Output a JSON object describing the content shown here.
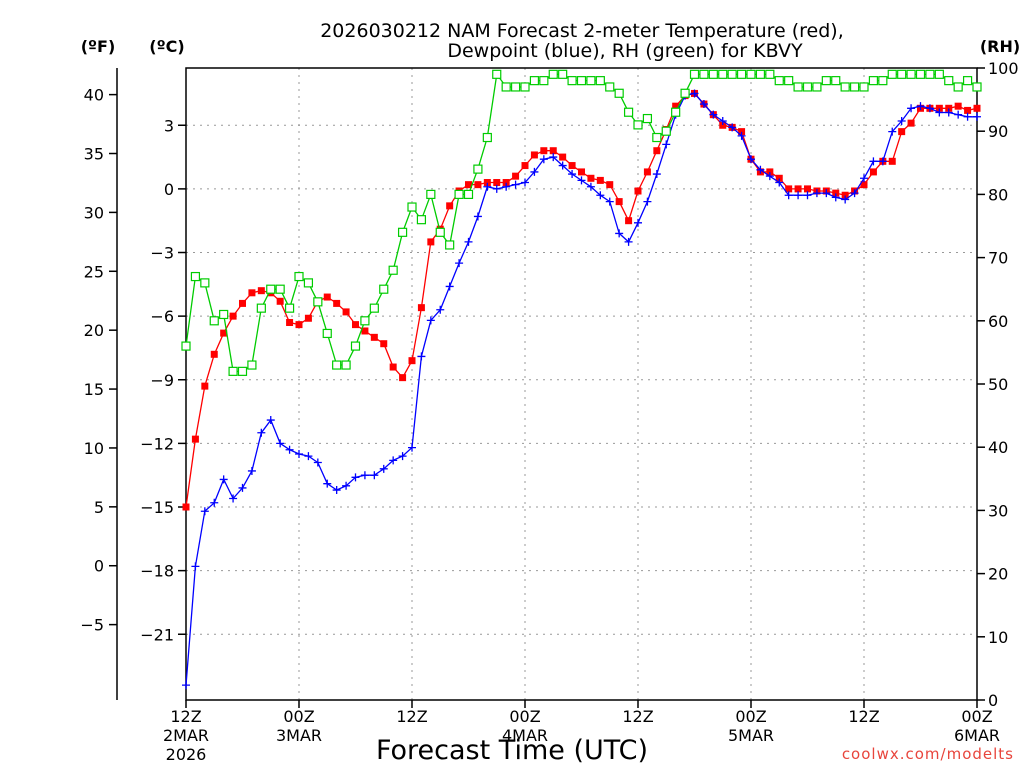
{
  "chart": {
    "title_line1": "2026030212 NAM Forecast 2-meter Temperature (red),",
    "title_line2": "Dewpoint (blue), RH (green) for KBVY",
    "unit_f": "(ºF)",
    "unit_c": "(ºC)",
    "unit_rh": "(RH)",
    "xlabel": "Forecast Time (UTC)",
    "credit": "coolwx.com/modelts",
    "colors": {
      "temperature": "#ff0000",
      "dewpoint": "#0000ff",
      "rh": "#00cc00",
      "grid": "#999999"
    }
  },
  "chart_data": {
    "type": "line",
    "title": "2026030212 NAM Forecast 2-meter Temperature (red), Dewpoint (blue), RH (green) for KBVY",
    "xlabel": "Forecast Time (UTC)",
    "x_unit": "forecast hour",
    "xlim": [
      0,
      84
    ],
    "x_ticks": [
      {
        "x": 0,
        "lines": [
          "12Z",
          "2MAR",
          "2026"
        ]
      },
      {
        "x": 12,
        "lines": [
          "00Z",
          "3MAR"
        ]
      },
      {
        "x": 24,
        "lines": [
          "12Z"
        ]
      },
      {
        "x": 36,
        "lines": [
          "00Z",
          "4MAR"
        ]
      },
      {
        "x": 48,
        "lines": [
          "12Z"
        ]
      },
      {
        "x": 60,
        "lines": [
          "00Z",
          "5MAR"
        ]
      },
      {
        "x": 72,
        "lines": [
          "12Z"
        ]
      },
      {
        "x": 84,
        "lines": [
          "00Z",
          "6MAR"
        ]
      }
    ],
    "y_left_c": {
      "ylim": [
        -24.1,
        5.7
      ],
      "ticks": [
        3,
        0,
        -3,
        -6,
        -9,
        -12,
        -15,
        -18,
        -21
      ]
    },
    "y_left_f": {
      "ylim": [
        -11.4,
        42.26
      ],
      "ticks": [
        40,
        35,
        30,
        25,
        20,
        15,
        10,
        5,
        0,
        -5
      ]
    },
    "y_right_rh": {
      "ylim": [
        0,
        100
      ],
      "ticks": [
        100,
        90,
        80,
        70,
        60,
        50,
        40,
        30,
        20,
        10,
        0
      ]
    },
    "grid": true,
    "series": [
      {
        "name": "Temperature (red)",
        "axis": "c",
        "marker": "filled-square",
        "x": [
          0,
          1,
          2,
          3,
          4,
          5,
          6,
          7,
          8,
          9,
          10,
          11,
          12,
          13,
          14,
          15,
          16,
          17,
          18,
          19,
          20,
          21,
          22,
          23,
          24,
          25,
          26,
          27,
          28,
          29,
          30,
          31,
          32,
          33,
          34,
          35,
          36,
          37,
          38,
          39,
          40,
          41,
          42,
          43,
          44,
          45,
          46,
          47,
          48,
          49,
          50,
          51,
          52,
          53,
          54,
          55,
          56,
          57,
          58,
          59,
          60,
          61,
          62,
          63,
          64,
          65,
          66,
          67,
          68,
          69,
          70,
          71,
          72,
          73,
          74,
          75,
          76,
          77,
          78,
          79,
          80,
          81,
          82,
          83,
          84
        ],
        "y": [
          -15.0,
          -11.8,
          -9.3,
          -7.8,
          -6.8,
          -6.0,
          -5.4,
          -4.9,
          -4.8,
          -4.9,
          -5.3,
          -6.3,
          -6.4,
          -6.1,
          -5.3,
          -5.1,
          -5.4,
          -5.8,
          -6.4,
          -6.7,
          -7.0,
          -7.3,
          -8.4,
          -8.9,
          -8.1,
          -5.6,
          -2.5,
          -1.9,
          -0.8,
          -0.1,
          0.2,
          0.2,
          0.3,
          0.3,
          0.3,
          0.6,
          1.1,
          1.6,
          1.8,
          1.8,
          1.5,
          1.1,
          0.8,
          0.5,
          0.4,
          0.2,
          -0.6,
          -1.5,
          -0.1,
          0.8,
          1.8,
          2.8,
          3.9,
          4.4,
          4.5,
          4.0,
          3.5,
          3.0,
          2.9,
          2.7,
          1.4,
          0.8,
          0.8,
          0.5,
          0.0,
          0.0,
          0.0,
          -0.1,
          -0.1,
          -0.2,
          -0.3,
          -0.1,
          0.2,
          0.8,
          1.3,
          1.3,
          2.7,
          3.1,
          3.8,
          3.8,
          3.8,
          3.8,
          3.9,
          3.7,
          3.8
        ],
        "values_f_unchecked": null
      },
      {
        "name": "Dewpoint (blue)",
        "axis": "c",
        "marker": "plus",
        "x": [
          0,
          1,
          2,
          3,
          4,
          5,
          6,
          7,
          8,
          9,
          10,
          11,
          12,
          13,
          14,
          15,
          16,
          17,
          18,
          19,
          20,
          21,
          22,
          23,
          24,
          25,
          26,
          27,
          28,
          29,
          30,
          31,
          32,
          33,
          34,
          35,
          36,
          37,
          38,
          39,
          40,
          41,
          42,
          43,
          44,
          45,
          46,
          47,
          48,
          49,
          50,
          51,
          52,
          53,
          54,
          55,
          56,
          57,
          58,
          59,
          60,
          61,
          62,
          63,
          64,
          65,
          66,
          67,
          68,
          69,
          70,
          71,
          72,
          73,
          74,
          75,
          76,
          77,
          78,
          79,
          80,
          81,
          82,
          83,
          84
        ],
        "y": [
          -23.4,
          -17.8,
          -15.2,
          -14.8,
          -13.7,
          -14.6,
          -14.1,
          -13.3,
          -11.5,
          -10.9,
          -12.0,
          -12.3,
          -12.5,
          -12.6,
          -12.9,
          -13.9,
          -14.2,
          -14.0,
          -13.6,
          -13.5,
          -13.5,
          -13.2,
          -12.8,
          -12.6,
          -12.2,
          -7.9,
          -6.2,
          -5.7,
          -4.6,
          -3.5,
          -2.5,
          -1.3,
          0.1,
          0.0,
          0.1,
          0.2,
          0.3,
          0.8,
          1.4,
          1.5,
          1.1,
          0.7,
          0.4,
          0.1,
          -0.3,
          -0.6,
          -2.1,
          -2.5,
          -1.6,
          -0.6,
          0.7,
          2.1,
          3.5,
          4.4,
          4.5,
          4.0,
          3.5,
          3.2,
          2.9,
          2.5,
          1.4,
          0.9,
          0.6,
          0.3,
          -0.3,
          -0.3,
          -0.3,
          -0.2,
          -0.2,
          -0.4,
          -0.5,
          -0.2,
          0.5,
          1.3,
          1.3,
          2.7,
          3.2,
          3.8,
          3.9,
          3.8,
          3.6,
          3.6,
          3.5,
          3.4,
          3.4
        ]
      },
      {
        "name": "RH (green)",
        "axis": "rh",
        "marker": "open-square",
        "x": [
          0,
          1,
          2,
          3,
          4,
          5,
          6,
          7,
          8,
          9,
          10,
          11,
          12,
          13,
          14,
          15,
          16,
          17,
          18,
          19,
          20,
          21,
          22,
          23,
          24,
          25,
          26,
          27,
          28,
          29,
          30,
          31,
          32,
          33,
          34,
          35,
          36,
          37,
          38,
          39,
          40,
          41,
          42,
          43,
          44,
          45,
          46,
          47,
          48,
          49,
          50,
          51,
          52,
          53,
          54,
          55,
          56,
          57,
          58,
          59,
          60,
          61,
          62,
          63,
          64,
          65,
          66,
          67,
          68,
          69,
          70,
          71,
          72,
          73,
          74,
          75,
          76,
          77,
          78,
          79,
          80,
          81,
          82,
          83,
          84
        ],
        "y": [
          56,
          67,
          66,
          60,
          61,
          52,
          52,
          53,
          62,
          65,
          65,
          62,
          67,
          66,
          63,
          58,
          53,
          53,
          56,
          60,
          62,
          65,
          68,
          74,
          78,
          76,
          80,
          74,
          72,
          80,
          80,
          84,
          89,
          99,
          97,
          97,
          97,
          98,
          98,
          99,
          99,
          98,
          98,
          98,
          98,
          97,
          96,
          93,
          91,
          92,
          89,
          90,
          93,
          96,
          99,
          99,
          99,
          99,
          99,
          99,
          99,
          99,
          99,
          98,
          98,
          97,
          97,
          97,
          98,
          98,
          97,
          97,
          97,
          98,
          98,
          99,
          99,
          99,
          99,
          99,
          99,
          98,
          97,
          98,
          97
        ]
      }
    ]
  }
}
